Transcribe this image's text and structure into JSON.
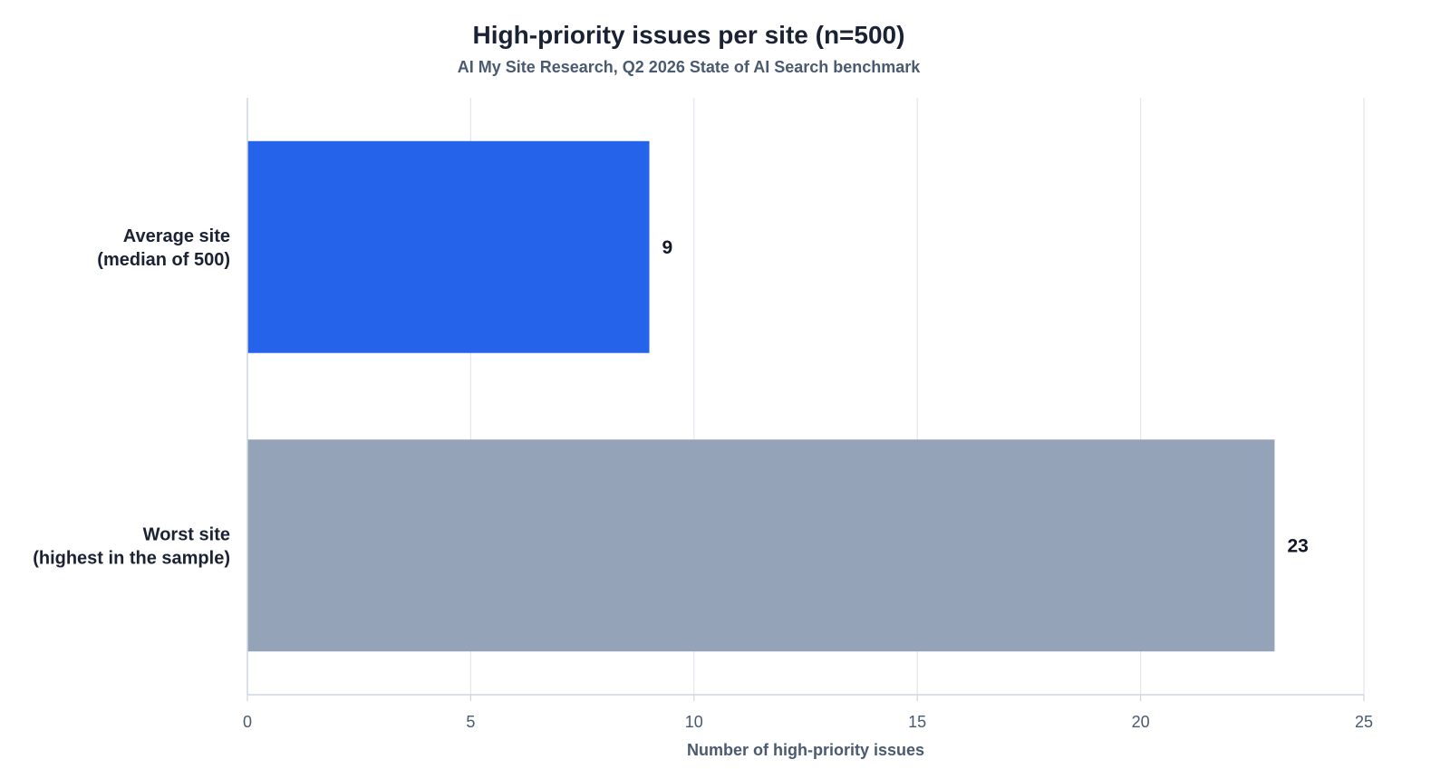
{
  "chart_data": {
    "type": "bar",
    "orientation": "horizontal",
    "title": "High-priority issues per site (n=500)",
    "subtitle": "AI My Site Research, Q2 2026 State of AI Search benchmark",
    "xlabel": "Number of high-priority issues",
    "ylabel": "",
    "xlim": [
      0,
      25
    ],
    "xticks": [
      0,
      5,
      10,
      15,
      20,
      25
    ],
    "grid": "vertical",
    "categories": [
      [
        "Average site",
        "(median of 500)"
      ],
      [
        "Worst site",
        "(highest in the sample)"
      ]
    ],
    "values": [
      9,
      23
    ],
    "value_labels": [
      "9",
      "23"
    ],
    "colors": [
      "#2563eb",
      "#94a3b8"
    ]
  }
}
